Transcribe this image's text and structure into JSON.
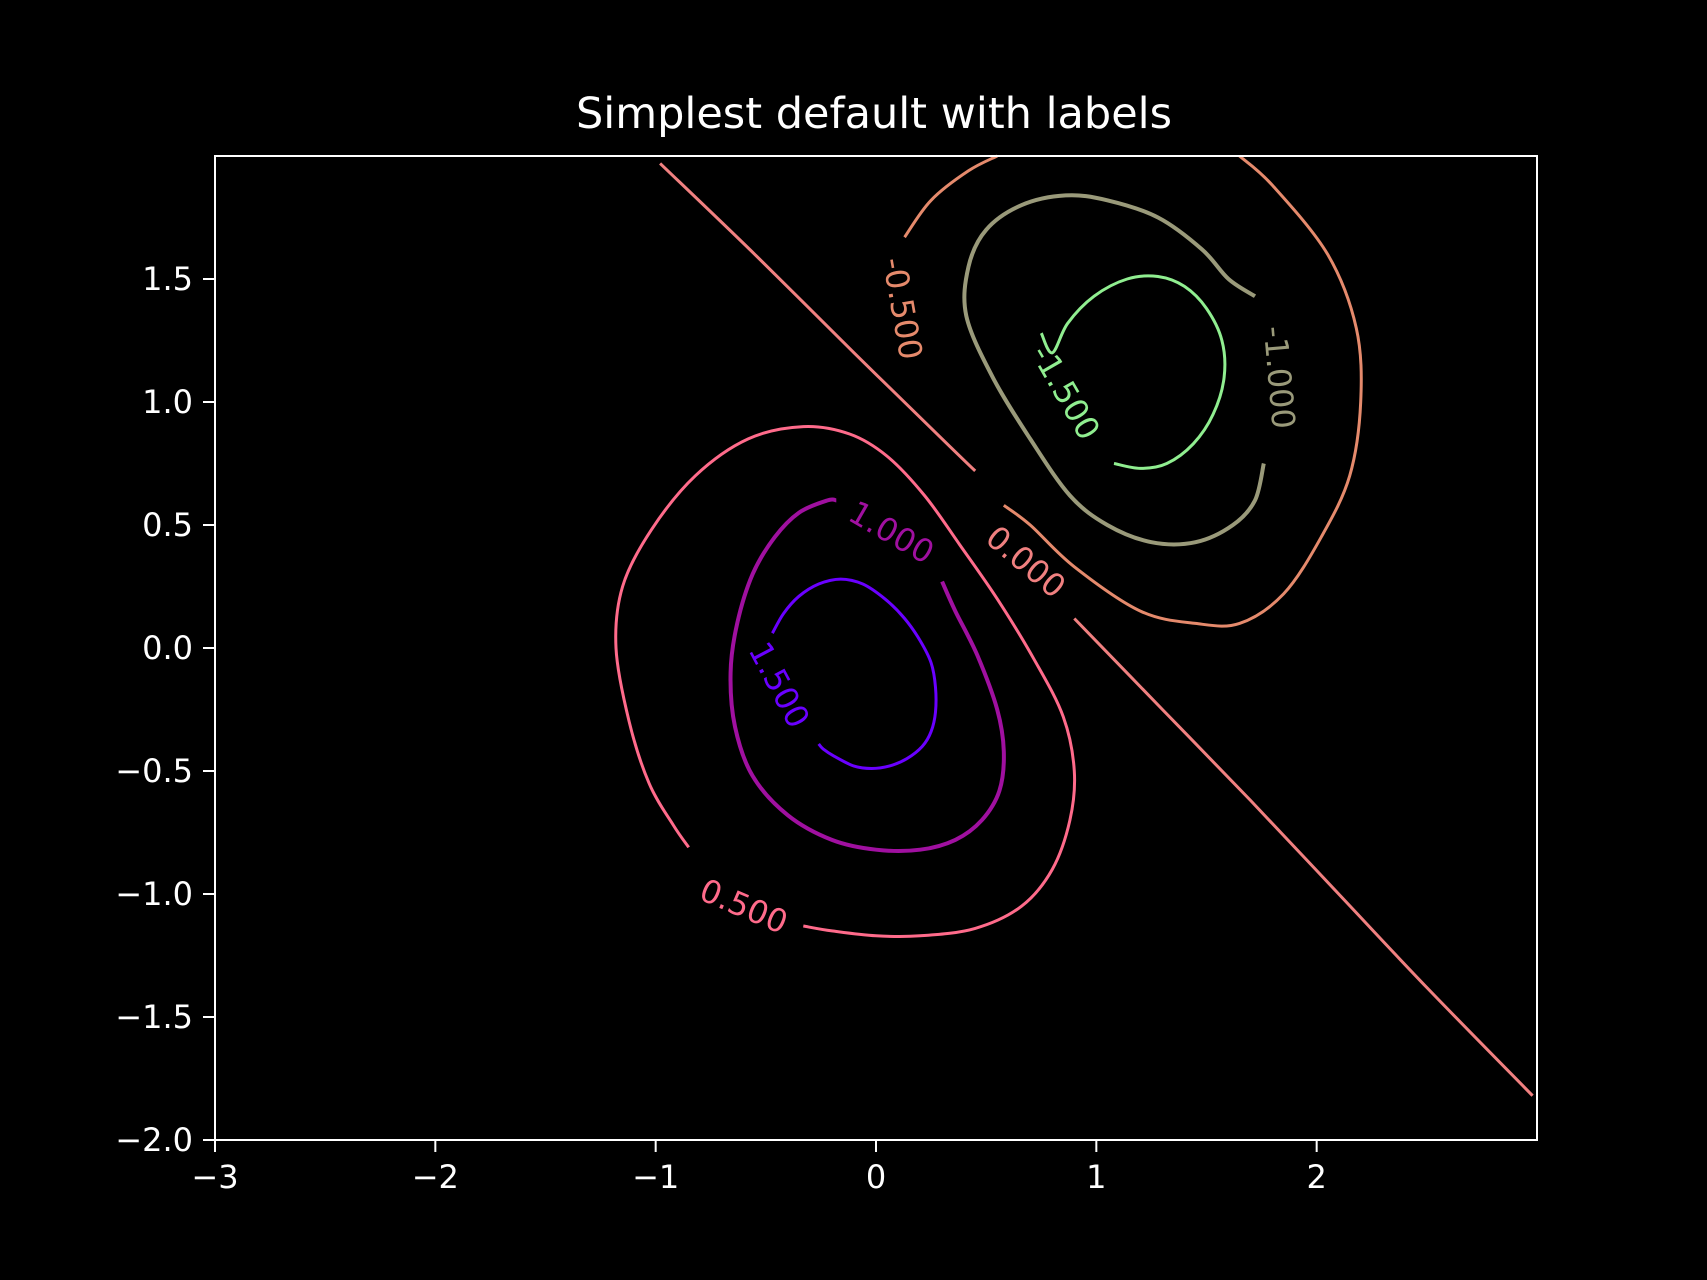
{
  "chart_data": {
    "type": "contour",
    "title": "Simplest default with labels",
    "xlim": [
      -3,
      3
    ],
    "ylim": [
      -2,
      2
    ],
    "x_ticks": [
      {
        "value": -3,
        "label": "−3"
      },
      {
        "value": -2,
        "label": "−2"
      },
      {
        "value": -1,
        "label": "−1"
      },
      {
        "value": 0,
        "label": "0"
      },
      {
        "value": 1,
        "label": "1"
      },
      {
        "value": 2,
        "label": "2"
      }
    ],
    "y_ticks": [
      {
        "value": -2.0,
        "label": "−2.0"
      },
      {
        "value": -1.5,
        "label": "−1.5"
      },
      {
        "value": -1.0,
        "label": "−1.0"
      },
      {
        "value": -0.5,
        "label": "−0.5"
      },
      {
        "value": 0.0,
        "label": "0.0"
      },
      {
        "value": 0.5,
        "label": "0.5"
      },
      {
        "value": 1.0,
        "label": "1.0"
      },
      {
        "value": 1.5,
        "label": "1.5"
      }
    ],
    "grid": false,
    "levels": [
      {
        "value": -1.5,
        "label": "-1.500",
        "color": "#90ee90"
      },
      {
        "value": -1.0,
        "label": "-1.000",
        "color": "#9a9a7a"
      },
      {
        "value": -0.5,
        "label": "-0.500",
        "color": "#e58a6c"
      },
      {
        "value": 0.0,
        "label": "0.000",
        "color": "#f08080"
      },
      {
        "value": 0.5,
        "label": "0.500",
        "color": "#ff6b8b"
      },
      {
        "value": 1.0,
        "label": "1.000",
        "color": "#a010a0"
      },
      {
        "value": 1.5,
        "label": "1.500",
        "color": "#6a00ff"
      }
    ],
    "contours": [
      {
        "level": "1.500",
        "points": [
          [
            -0.47,
            0.06
          ],
          [
            -0.42,
            0.14
          ],
          [
            -0.35,
            0.21
          ],
          [
            -0.26,
            0.26
          ],
          [
            -0.16,
            0.28
          ],
          [
            -0.06,
            0.26
          ],
          [
            0.04,
            0.2
          ],
          [
            0.13,
            0.12
          ],
          [
            0.2,
            0.03
          ],
          [
            0.25,
            -0.06
          ],
          [
            0.27,
            -0.16
          ],
          [
            0.27,
            -0.26
          ],
          [
            0.25,
            -0.34
          ],
          [
            0.21,
            -0.4
          ],
          [
            0.14,
            -0.45
          ],
          [
            0.06,
            -0.48
          ],
          [
            -0.02,
            -0.49
          ],
          [
            -0.1,
            -0.48
          ],
          [
            -0.19,
            -0.44
          ],
          [
            -0.24,
            -0.41
          ],
          [
            -0.26,
            -0.39
          ]
        ]
      },
      {
        "level": "1.000",
        "points": [
          [
            0.3,
            0.27
          ],
          [
            0.36,
            0.15
          ],
          [
            0.46,
            -0.03
          ],
          [
            0.55,
            -0.25
          ],
          [
            0.58,
            -0.42
          ],
          [
            0.56,
            -0.58
          ],
          [
            0.48,
            -0.7
          ],
          [
            0.36,
            -0.78
          ],
          [
            0.2,
            -0.82
          ],
          [
            0.0,
            -0.82
          ],
          [
            -0.2,
            -0.78
          ],
          [
            -0.4,
            -0.68
          ],
          [
            -0.56,
            -0.52
          ],
          [
            -0.64,
            -0.32
          ],
          [
            -0.66,
            -0.1
          ],
          [
            -0.63,
            0.1
          ],
          [
            -0.56,
            0.3
          ],
          [
            -0.46,
            0.45
          ],
          [
            -0.35,
            0.55
          ],
          [
            -0.22,
            0.6
          ],
          [
            -0.18,
            0.6
          ]
        ]
      },
      {
        "level": "0.500",
        "points": [
          [
            -0.85,
            -0.81
          ],
          [
            -0.92,
            -0.72
          ],
          [
            -1.03,
            -0.55
          ],
          [
            -1.12,
            -0.3
          ],
          [
            -1.18,
            0.0
          ],
          [
            -1.15,
            0.25
          ],
          [
            -1.02,
            0.48
          ],
          [
            -0.82,
            0.7
          ],
          [
            -0.58,
            0.85
          ],
          [
            -0.33,
            0.9
          ],
          [
            -0.12,
            0.87
          ],
          [
            0.05,
            0.78
          ],
          [
            0.22,
            0.62
          ],
          [
            0.38,
            0.42
          ],
          [
            0.55,
            0.2
          ],
          [
            0.72,
            -0.05
          ],
          [
            0.85,
            -0.28
          ],
          [
            0.9,
            -0.5
          ],
          [
            0.88,
            -0.7
          ],
          [
            0.8,
            -0.9
          ],
          [
            0.66,
            -1.05
          ],
          [
            0.45,
            -1.14
          ],
          [
            0.2,
            -1.17
          ],
          [
            0.0,
            -1.17
          ],
          [
            -0.2,
            -1.15
          ],
          [
            -0.33,
            -1.13
          ]
        ]
      },
      {
        "level": "0.000",
        "points": [
          [
            -0.98,
            1.97
          ],
          [
            -0.55,
            1.6
          ],
          [
            -0.1,
            1.2
          ],
          [
            0.3,
            0.85
          ],
          [
            0.45,
            0.72
          ]
        ]
      },
      {
        "level": "0.000",
        "points": [
          [
            0.9,
            0.12
          ],
          [
            1.3,
            -0.25
          ],
          [
            1.7,
            -0.62
          ],
          [
            2.1,
            -1.0
          ],
          [
            2.5,
            -1.38
          ],
          [
            2.98,
            -1.82
          ]
        ]
      },
      {
        "level": "-0.500",
        "points": [
          [
            0.13,
            1.67
          ],
          [
            0.25,
            1.82
          ],
          [
            0.42,
            1.94
          ],
          [
            0.55,
            2.0
          ]
        ]
      },
      {
        "level": "-0.500",
        "points": [
          [
            1.65,
            2.0
          ],
          [
            1.8,
            1.88
          ],
          [
            2.05,
            1.6
          ],
          [
            2.18,
            1.3
          ],
          [
            2.2,
            1.0
          ],
          [
            2.15,
            0.7
          ],
          [
            2.02,
            0.45
          ],
          [
            1.85,
            0.22
          ],
          [
            1.65,
            0.1
          ],
          [
            1.45,
            0.1
          ],
          [
            1.2,
            0.15
          ],
          [
            0.9,
            0.33
          ],
          [
            0.7,
            0.5
          ],
          [
            0.58,
            0.58
          ]
        ]
      },
      {
        "level": "-1.000",
        "points": [
          [
            1.76,
            0.75
          ],
          [
            1.72,
            0.6
          ],
          [
            1.62,
            0.5
          ],
          [
            1.45,
            0.43
          ],
          [
            1.25,
            0.43
          ],
          [
            1.05,
            0.5
          ],
          [
            0.88,
            0.62
          ],
          [
            0.7,
            0.85
          ],
          [
            0.53,
            1.1
          ],
          [
            0.41,
            1.35
          ],
          [
            0.42,
            1.55
          ],
          [
            0.5,
            1.7
          ],
          [
            0.66,
            1.8
          ],
          [
            0.86,
            1.84
          ],
          [
            1.05,
            1.82
          ],
          [
            1.28,
            1.75
          ],
          [
            1.48,
            1.62
          ],
          [
            1.6,
            1.5
          ],
          [
            1.72,
            1.43
          ]
        ]
      },
      {
        "level": "-1.500",
        "points": [
          [
            1.08,
            0.75
          ],
          [
            1.2,
            0.73
          ],
          [
            1.32,
            0.75
          ],
          [
            1.44,
            0.83
          ],
          [
            1.53,
            0.95
          ],
          [
            1.58,
            1.1
          ],
          [
            1.57,
            1.25
          ],
          [
            1.5,
            1.38
          ],
          [
            1.4,
            1.47
          ],
          [
            1.28,
            1.51
          ],
          [
            1.14,
            1.5
          ],
          [
            0.99,
            1.43
          ],
          [
            0.87,
            1.32
          ],
          [
            0.8,
            1.2
          ],
          [
            0.75,
            1.28
          ]
        ]
      }
    ],
    "contour_labels": [
      {
        "text": "1.500",
        "x": -0.44,
        "y": -0.15,
        "rotation": 62
      },
      {
        "text": "1.000",
        "x": 0.07,
        "y": 0.47,
        "rotation": 30
      },
      {
        "text": "0.500",
        "x": -0.6,
        "y": -1.05,
        "rotation": 23
      },
      {
        "text": "0.000",
        "x": 0.68,
        "y": 0.35,
        "rotation": 40
      },
      {
        "text": "-0.500",
        "x": 0.12,
        "y": 1.38,
        "rotation": 80
      },
      {
        "text": "-1.000",
        "x": 1.83,
        "y": 1.1,
        "rotation": 85
      },
      {
        "text": "-1.500",
        "x": 0.86,
        "y": 1.04,
        "rotation": 60
      }
    ]
  }
}
